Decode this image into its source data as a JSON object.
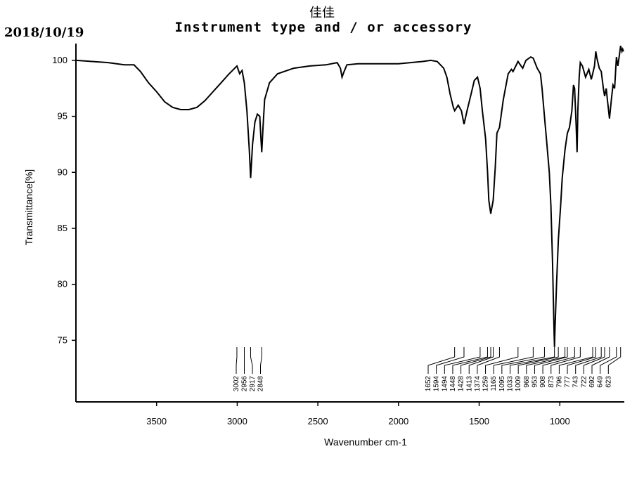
{
  "header": {
    "date": "2018/10/19",
    "sample_name": "佳佳",
    "instrument_line": "Instrument type and / or accessory"
  },
  "chart_data": {
    "type": "line",
    "xlabel": "Wavenumber  cm-1",
    "ylabel": "Transmittance[%]",
    "xlim": [
      4000,
      600
    ],
    "ylim": [
      69.5,
      101.5
    ],
    "x_ticks": [
      3500,
      3000,
      2500,
      2000,
      1500,
      1000
    ],
    "y_ticks": [
      75,
      80,
      85,
      90,
      95,
      100
    ],
    "series": [
      {
        "points": [
          [
            4000,
            100.0
          ],
          [
            3900,
            99.9
          ],
          [
            3800,
            99.8
          ],
          [
            3700,
            99.6
          ],
          [
            3640,
            99.6
          ],
          [
            3600,
            99.0
          ],
          [
            3550,
            98.0
          ],
          [
            3500,
            97.2
          ],
          [
            3450,
            96.3
          ],
          [
            3400,
            95.8
          ],
          [
            3350,
            95.6
          ],
          [
            3300,
            95.6
          ],
          [
            3250,
            95.8
          ],
          [
            3200,
            96.4
          ],
          [
            3150,
            97.2
          ],
          [
            3100,
            98.0
          ],
          [
            3050,
            98.8
          ],
          [
            3002,
            99.5
          ],
          [
            2985,
            98.8
          ],
          [
            2970,
            99.1
          ],
          [
            2956,
            98.0
          ],
          [
            2940,
            95.5
          ],
          [
            2925,
            92.0
          ],
          [
            2917,
            89.5
          ],
          [
            2905,
            92.5
          ],
          [
            2890,
            94.5
          ],
          [
            2875,
            95.2
          ],
          [
            2860,
            95.0
          ],
          [
            2855,
            93.5
          ],
          [
            2848,
            91.8
          ],
          [
            2840,
            94.0
          ],
          [
            2830,
            96.5
          ],
          [
            2800,
            98.0
          ],
          [
            2750,
            98.8
          ],
          [
            2650,
            99.3
          ],
          [
            2550,
            99.5
          ],
          [
            2450,
            99.6
          ],
          [
            2380,
            99.8
          ],
          [
            2360,
            99.3
          ],
          [
            2350,
            98.5
          ],
          [
            2340,
            98.9
          ],
          [
            2320,
            99.6
          ],
          [
            2250,
            99.7
          ],
          [
            2000,
            99.7
          ],
          [
            1850,
            99.9
          ],
          [
            1800,
            100.0
          ],
          [
            1760,
            99.9
          ],
          [
            1720,
            99.3
          ],
          [
            1700,
            98.5
          ],
          [
            1680,
            97.0
          ],
          [
            1660,
            95.8
          ],
          [
            1652,
            95.5
          ],
          [
            1630,
            96.0
          ],
          [
            1610,
            95.5
          ],
          [
            1594,
            94.3
          ],
          [
            1575,
            95.5
          ],
          [
            1550,
            97.0
          ],
          [
            1530,
            98.2
          ],
          [
            1510,
            98.5
          ],
          [
            1494,
            97.5
          ],
          [
            1480,
            95.5
          ],
          [
            1460,
            93.0
          ],
          [
            1448,
            90.0
          ],
          [
            1440,
            87.5
          ],
          [
            1430,
            86.5
          ],
          [
            1428,
            86.3
          ],
          [
            1413,
            87.5
          ],
          [
            1400,
            90.5
          ],
          [
            1390,
            93.5
          ],
          [
            1374,
            94.0
          ],
          [
            1350,
            96.5
          ],
          [
            1320,
            98.8
          ],
          [
            1300,
            99.2
          ],
          [
            1290,
            99.0
          ],
          [
            1259,
            99.9
          ],
          [
            1240,
            99.5
          ],
          [
            1230,
            99.3
          ],
          [
            1210,
            100.0
          ],
          [
            1180,
            100.3
          ],
          [
            1165,
            100.2
          ],
          [
            1140,
            99.3
          ],
          [
            1120,
            98.8
          ],
          [
            1110,
            97.5
          ],
          [
            1095,
            95.0
          ],
          [
            1080,
            92.5
          ],
          [
            1065,
            90.0
          ],
          [
            1055,
            87.0
          ],
          [
            1045,
            82.0
          ],
          [
            1040,
            78.5
          ],
          [
            1035,
            75.5
          ],
          [
            1033,
            74.4
          ],
          [
            1030,
            76.0
          ],
          [
            1020,
            80.0
          ],
          [
            1009,
            84.0
          ],
          [
            995,
            87.0
          ],
          [
            985,
            89.5
          ],
          [
            968,
            92.0
          ],
          [
            953,
            93.5
          ],
          [
            940,
            94.0
          ],
          [
            925,
            95.5
          ],
          [
            915,
            97.8
          ],
          [
            908,
            97.5
          ],
          [
            898,
            94.0
          ],
          [
            893,
            91.8
          ],
          [
            888,
            95.5
          ],
          [
            880,
            98.5
          ],
          [
            873,
            99.8
          ],
          [
            860,
            99.5
          ],
          [
            840,
            98.5
          ],
          [
            820,
            99.2
          ],
          [
            805,
            98.3
          ],
          [
            796,
            98.8
          ],
          [
            785,
            99.5
          ],
          [
            777,
            100.8
          ],
          [
            770,
            100.2
          ],
          [
            755,
            99.3
          ],
          [
            743,
            99.0
          ],
          [
            730,
            97.5
          ],
          [
            722,
            96.8
          ],
          [
            712,
            97.5
          ],
          [
            705,
            96.5
          ],
          [
            692,
            94.8
          ],
          [
            680,
            96.5
          ],
          [
            670,
            97.8
          ],
          [
            660,
            97.5
          ],
          [
            649,
            100.3
          ],
          [
            640,
            99.5
          ],
          [
            630,
            100.5
          ],
          [
            623,
            101.3
          ],
          [
            615,
            100.8
          ],
          [
            610,
            101.0
          ],
          [
            605,
            100.8
          ]
        ]
      }
    ],
    "peaks_left": [
      "3002",
      "2956",
      "2917",
      "2848"
    ],
    "peaks_right": [
      "1652",
      "1594",
      "1494",
      "1448",
      "1428",
      "1413",
      "1374",
      "1259",
      "1165",
      "1095",
      "1033",
      "1009",
      "968",
      "953",
      "908",
      "873",
      "796",
      "777",
      "743",
      "722",
      "692",
      "649",
      "623"
    ],
    "grid": false
  }
}
